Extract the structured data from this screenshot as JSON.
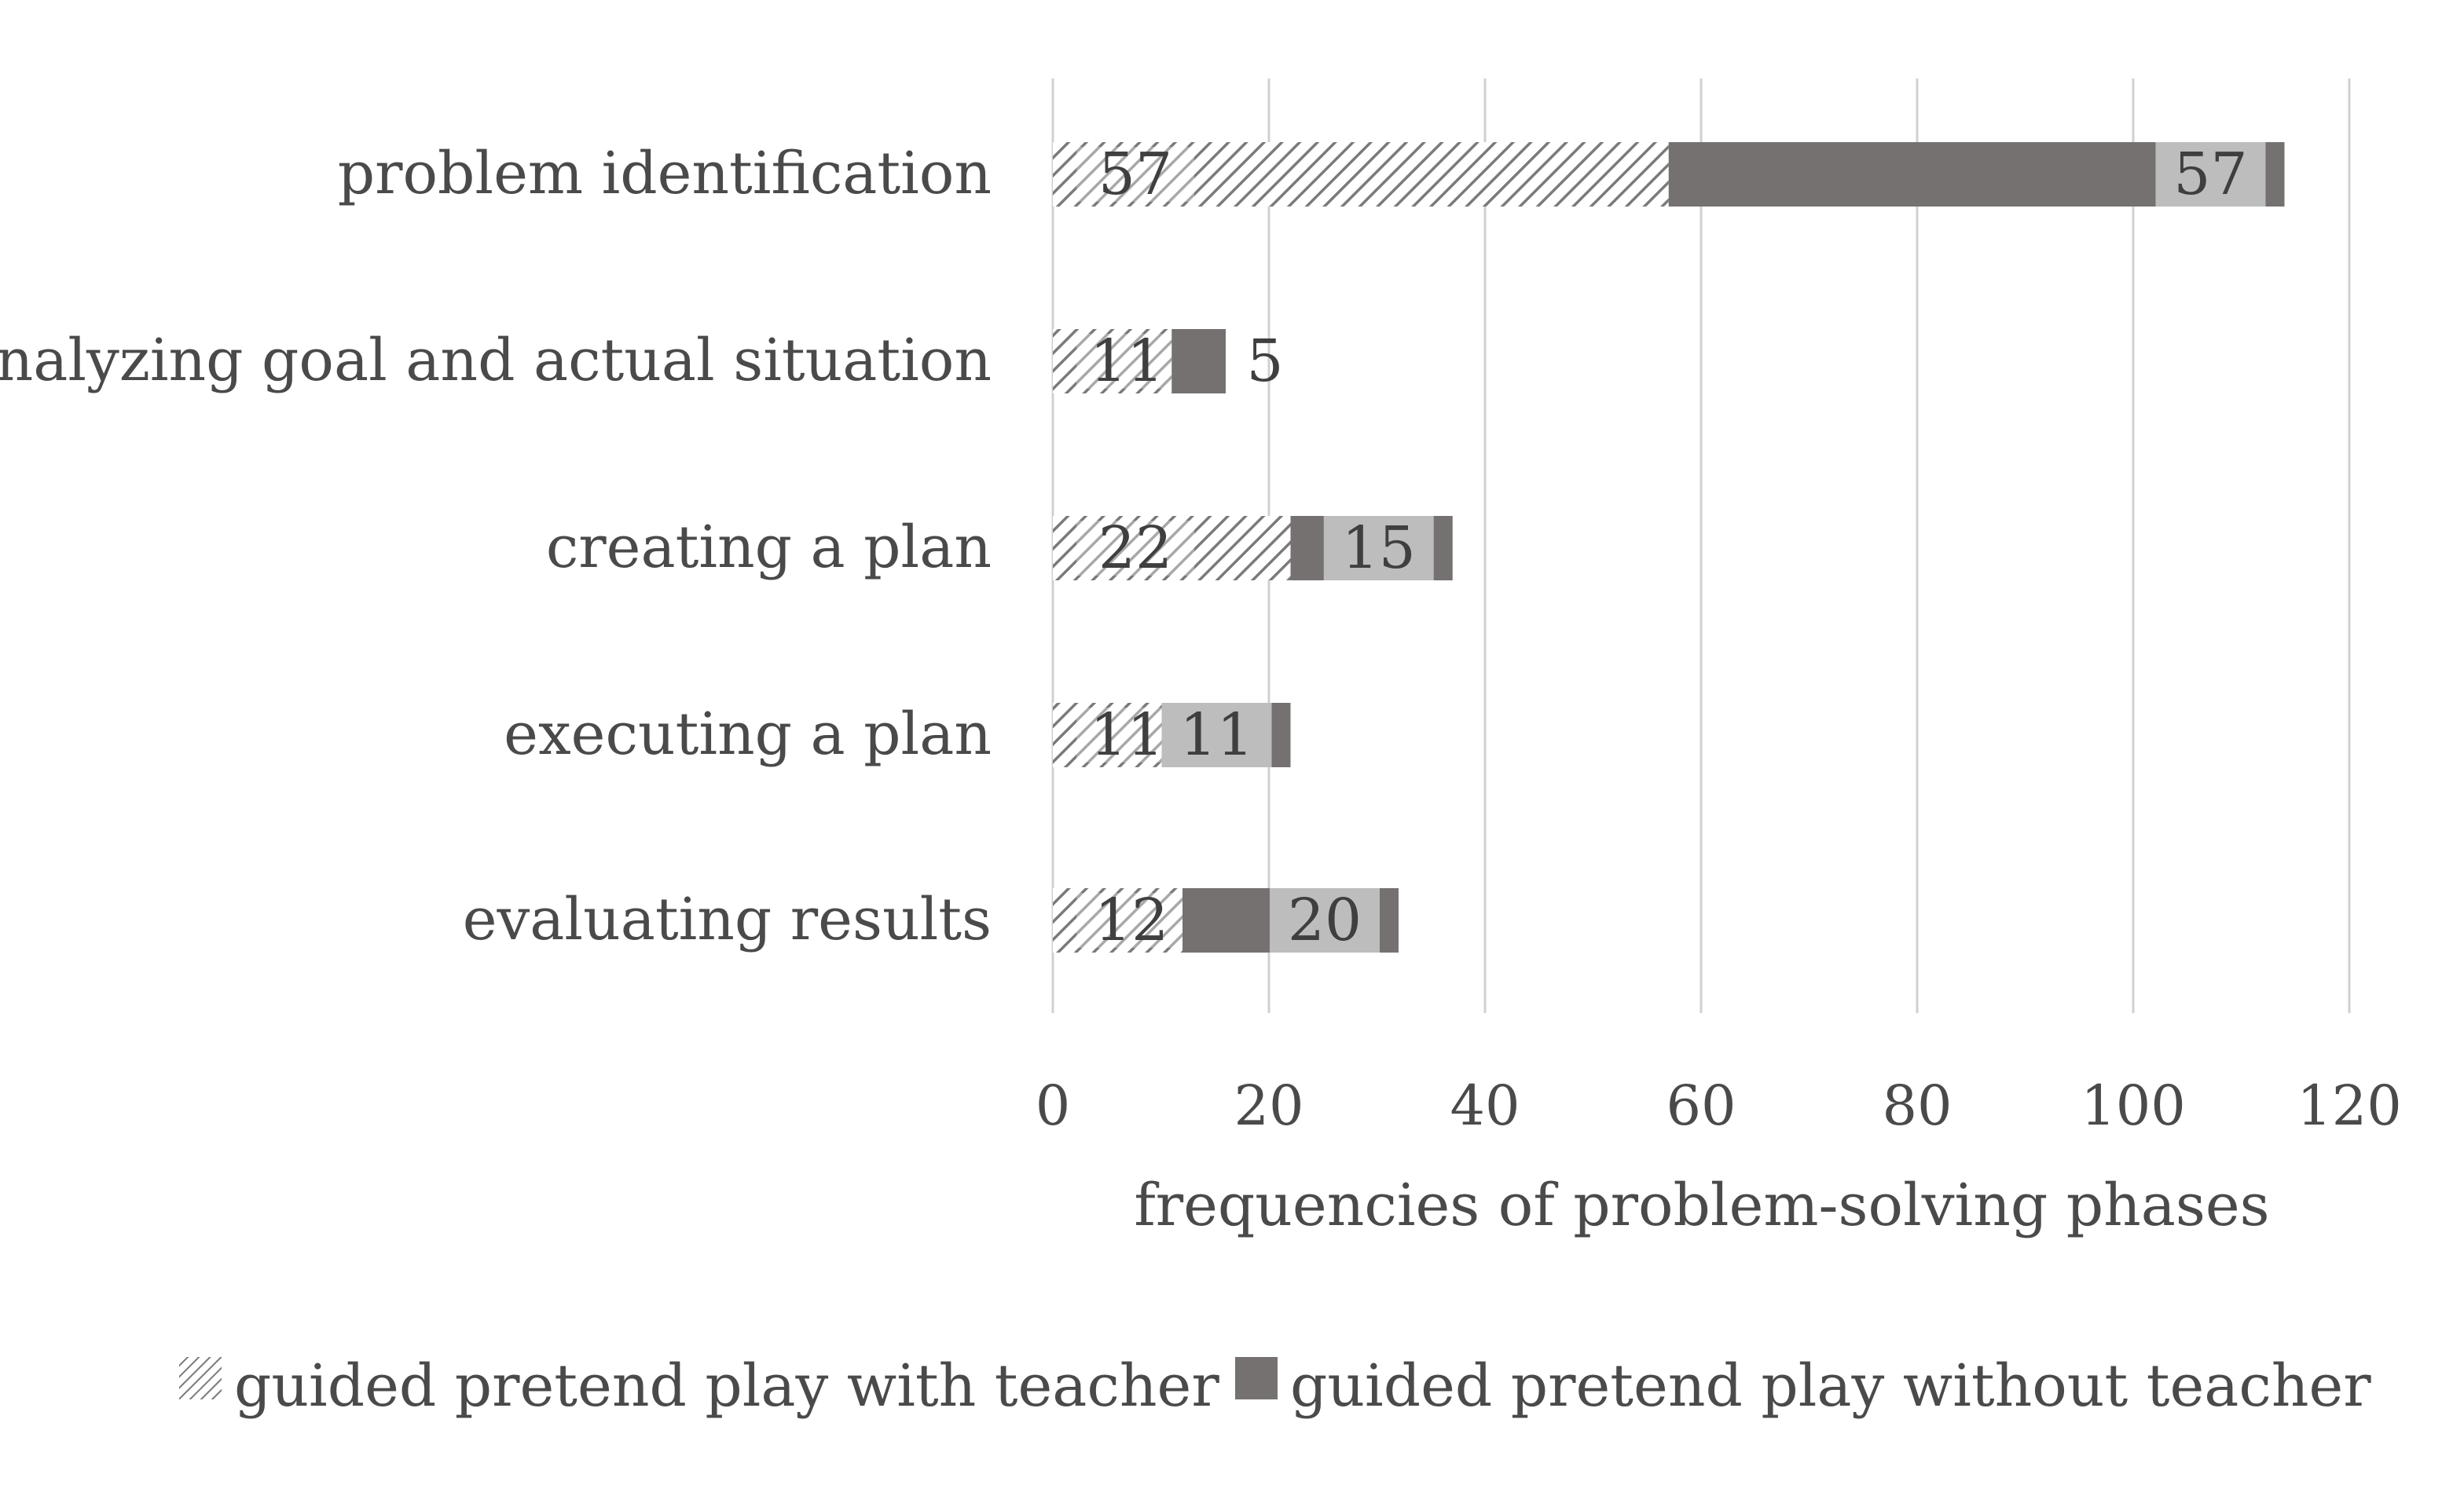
{
  "chart_data": {
    "type": "bar",
    "orientation": "horizontal",
    "stacked": true,
    "categories": [
      "problem identification",
      "analyzing goal and actual situation",
      "creating a plan",
      "executing a plan",
      "evaluating results"
    ],
    "series": [
      {
        "name": "guided pretend play with teacher",
        "values": [
          57,
          11,
          22,
          11,
          12
        ],
        "labels": [
          "57",
          "11",
          "22",
          "11",
          "12"
        ],
        "pattern": "hatched",
        "color": "#7a7a7a"
      },
      {
        "name": "guided pretend play without teacher",
        "values": [
          57,
          5,
          15,
          11,
          20
        ],
        "labels": [
          "57",
          "5",
          "15",
          "11",
          "20"
        ],
        "pattern": "solid",
        "color": "#757171"
      }
    ],
    "xlabel": "frequencies of problem-solving phases",
    "ylabel": "",
    "xlim": [
      0,
      120
    ],
    "xticks": [
      "0",
      "20",
      "40",
      "60",
      "80",
      "100",
      "120"
    ],
    "grid": "vertical",
    "legend_position": "bottom",
    "colors": {
      "solid": "#757171",
      "label_box": "#bdbdbd",
      "hatch_line": "#7a7a7a",
      "hatch_bg": "#ffffff",
      "grid": "#d0d0d0",
      "text": "#4a4a4a"
    }
  }
}
